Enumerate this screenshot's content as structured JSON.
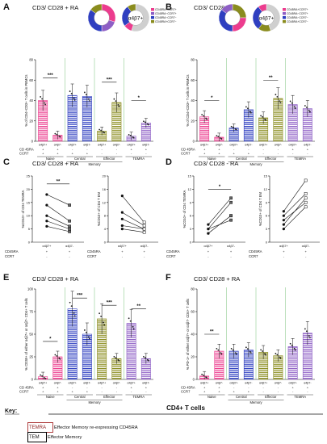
{
  "figure": {
    "panels": [
      {
        "id": "A",
        "title": "CD3/ CD28 + RA",
        "ylabel": "% of CD4+CD3+ T cells in PBMCs",
        "pie_label": "α4β7+",
        "legend": [
          "CD45RA+CCR7+",
          "CD45RA−CCR7+",
          "CD45RA−CCR7−",
          "CD45RA+CCR7−"
        ],
        "row_labels": [
          "CD 45RA",
          "CCR7"
        ],
        "group_labels": [
          "Naive",
          "Central",
          "Effector",
          "TEMRA"
        ],
        "group_sublabel": "Memory",
        "signif": [
          "***",
          "***",
          "*"
        ]
      },
      {
        "id": "B",
        "title": "CD3/ CD28 - RA",
        "ylabel": "% of CD4+CD3+ T cells in PBMCs",
        "pie_label": "α4β7+",
        "legend": [
          "CD45RA+CCR7+",
          "CD45RA−CCR7+",
          "CD45RA−CCR7−",
          "CD45RA+CCR7−"
        ],
        "row_labels": [
          "CD 45RA",
          "CCR7"
        ],
        "group_labels": [
          "Naive",
          "Central",
          "Effector",
          "TEMRA"
        ],
        "group_sublabel": "Memory",
        "signif": [
          "*",
          "**"
        ]
      },
      {
        "id": "C",
        "title": "CD3/ CD28 + RA",
        "ylabel_left": "%CD10+ of CD4 TEMRA",
        "ylabel_right": "%CD10+ of CD4 T EM",
        "x_labels": [
          "α4β7+",
          "α4β7-"
        ],
        "row_labels": [
          "CD45RA",
          "CCR7"
        ],
        "signif": [
          "**"
        ]
      },
      {
        "id": "D",
        "title": "CD3/ CD28 - RA",
        "ylabel_left": "%CD10+ of CD4 TEMRA",
        "ylabel_right": "%CD10+ of CD4 T EM",
        "x_labels": [
          "α4β7+",
          "α4β7-"
        ],
        "row_labels": [
          "CD45RA",
          "CCR7"
        ],
        "signif": [
          "*"
        ]
      },
      {
        "id": "E",
        "title": "CD3/ CD28 + RA",
        "ylabel": "% CD38+ of either α4β7+ or α4β7- CD4+ T cells",
        "row_labels": [
          "CD 45RA",
          "CCR7"
        ],
        "group_labels": [
          "Naive",
          "Central",
          "Effector",
          "TEMRA"
        ],
        "group_sublabel": "Memory",
        "signif": [
          "*",
          "***",
          "***",
          "**"
        ]
      },
      {
        "id": "F",
        "title": "CD3/ CD28 + RA",
        "ylabel": "% PD-1+ of either α4β7+ or α4β7- CD4+ T cells",
        "row_labels": [
          "CD 45RA",
          "CCR7"
        ],
        "group_labels": [
          "Naive",
          "Central",
          "Effector",
          "TEMRA"
        ],
        "group_sublabel": "Memory",
        "signif": [
          "**"
        ]
      }
    ],
    "bar_x_labels": [
      "α4β7+",
      "α4β7-",
      "α4β7+",
      "α4β7-",
      "α4β7+",
      "α4β7-",
      "α4β7+",
      "α4β7-"
    ],
    "sign_rows": {
      "ra": [
        "+",
        "+",
        "-",
        "-",
        "-",
        "-",
        "+",
        "+"
      ],
      "ccr7": [
        "+",
        "+",
        "+",
        "+",
        "-",
        "-",
        "-",
        "-"
      ]
    },
    "key": {
      "title": "Key:",
      "heading": "CD4+ T cells",
      "items": [
        {
          "abbr": "TEMRA",
          "text": "Effector Memory re-expressing CD45RA"
        },
        {
          "abbr": "TEM",
          "text": "Effector Memory"
        }
      ]
    },
    "colors": {
      "pink": "#ec3c8e",
      "blue": "#2f3fc0",
      "olive": "#8a8c1e",
      "purple": "#8e5fc5",
      "green_line": "#79c27a"
    }
  },
  "chart_data": [
    {
      "type": "bar",
      "panel": "A",
      "categories": [
        "α4β7+",
        "α4β7-",
        "α4β7+",
        "α4β7-",
        "α4β7+",
        "α4β7-",
        "α4β7+",
        "α4β7-"
      ],
      "values": [
        40,
        6,
        45,
        44,
        10,
        38,
        5,
        18
      ],
      "ylim": [
        0,
        80
      ]
    },
    {
      "type": "bar",
      "panel": "B",
      "categories": [
        "α4β7+",
        "α4β7-",
        "α4β7+",
        "α4β7-",
        "α4β7+",
        "α4β7-",
        "α4β7+",
        "α4β7-"
      ],
      "values": [
        24,
        4,
        13,
        31,
        23,
        42,
        36,
        32
      ],
      "ylim": [
        0,
        80
      ]
    },
    {
      "type": "line",
      "panel": "C-left",
      "x": [
        "α4β7+",
        "α4β7-"
      ],
      "series": [
        {
          "values": [
            18,
            14
          ]
        },
        {
          "values": [
            14,
            8
          ]
        },
        {
          "values": [
            10,
            6
          ]
        },
        {
          "values": [
            8,
            5
          ]
        },
        {
          "values": [
            6,
            4
          ]
        }
      ],
      "ylim": [
        0,
        25
      ]
    },
    {
      "type": "line",
      "panel": "C-right",
      "x": [
        "α4β7+",
        "α4β7-"
      ],
      "series": [
        {
          "values": [
            14,
            6
          ]
        },
        {
          "values": [
            9,
            5
          ]
        },
        {
          "values": [
            7,
            4
          ]
        },
        {
          "values": [
            5,
            4
          ]
        },
        {
          "values": [
            4,
            3
          ]
        }
      ],
      "ylim": [
        0,
        20
      ]
    },
    {
      "type": "line",
      "panel": "D-left",
      "x": [
        "α4β7+",
        "α4β7-"
      ],
      "series": [
        {
          "values": [
            4,
            10
          ]
        },
        {
          "values": [
            3,
            9
          ]
        },
        {
          "values": [
            2,
            6
          ]
        },
        {
          "values": [
            3,
            5
          ]
        },
        {
          "values": [
            2,
            6
          ]
        }
      ],
      "ylim": [
        0,
        15
      ]
    },
    {
      "type": "line",
      "panel": "D-right",
      "x": [
        "α4β7+",
        "α4β7-"
      ],
      "series": [
        {
          "values": [
            7,
            14
          ]
        },
        {
          "values": [
            6,
            11
          ]
        },
        {
          "values": [
            5,
            9
          ]
        },
        {
          "values": [
            4,
            10
          ]
        },
        {
          "values": [
            3,
            8
          ]
        }
      ],
      "ylim": [
        0,
        15
      ]
    },
    {
      "type": "bar",
      "panel": "E",
      "categories": [
        "α4β7+",
        "α4β7-",
        "α4β7+",
        "α4β7-",
        "α4β7+",
        "α4β7-",
        "α4β7+",
        "α4β7-"
      ],
      "values": [
        3,
        25,
        78,
        50,
        67,
        23,
        62,
        23
      ],
      "ylim": [
        0,
        100
      ]
    },
    {
      "type": "bar",
      "panel": "F",
      "categories": [
        "α4β7+",
        "α4β7-",
        "α4β7+",
        "α4β7-",
        "α4β7+",
        "α4β7-",
        "α4β7+",
        "α4β7-"
      ],
      "values": [
        3,
        25,
        25,
        26,
        24,
        21,
        29,
        41
      ],
      "ylim": [
        0,
        80
      ]
    }
  ]
}
